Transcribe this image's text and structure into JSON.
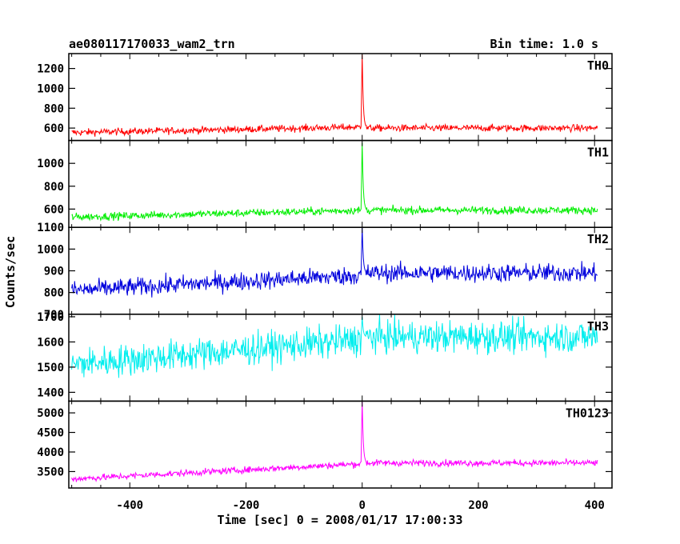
{
  "header": {
    "left_title": "ae080117170033_wam2_trn",
    "right_title": "Bin time: 1.0 s"
  },
  "chart_data": {
    "type": "line",
    "xlabel": "Time [sec] 0 = 2008/01/17 17:00:33",
    "ylabel": "Counts/sec",
    "xlim": [
      -505,
      430
    ],
    "xticks": [
      -400,
      -200,
      0,
      200,
      400
    ],
    "x_start": -500,
    "x_end": 405,
    "bin": 1.0,
    "grid": false,
    "panels": [
      {
        "name": "TH0",
        "color": "#ff0000",
        "ylim": [
          475,
          1350
        ],
        "yticks": [
          600,
          800,
          1000,
          1200
        ],
        "baseline_start": 555,
        "baseline_pre": 610,
        "baseline_post": 600,
        "noise": 25,
        "peak": 1340
      },
      {
        "name": "TH1",
        "color": "#00ee00",
        "ylim": [
          440,
          1200
        ],
        "yticks": [
          600,
          800,
          1000
        ],
        "baseline_start": 530,
        "baseline_pre": 590,
        "baseline_post": 590,
        "noise": 24,
        "peak": 1180
      },
      {
        "name": "TH2",
        "color": "#0000dd",
        "ylim": [
          700,
          1100
        ],
        "yticks": [
          700,
          800,
          900,
          1000,
          1100
        ],
        "baseline_start": 810,
        "baseline_pre": 880,
        "baseline_post": 890,
        "noise": 30,
        "peak": 1100
      },
      {
        "name": "TH3",
        "color": "#00eeee",
        "ylim": [
          1365,
          1710
        ],
        "yticks": [
          1400,
          1500,
          1600,
          1700
        ],
        "baseline_start": 1510,
        "baseline_pre": 1610,
        "baseline_post": 1620,
        "noise": 45,
        "peak": 1700
      },
      {
        "name": "TH0123",
        "color": "#ff00ff",
        "ylim": [
          3080,
          5300
        ],
        "yticks": [
          3500,
          4000,
          4500,
          5000
        ],
        "baseline_start": 3310,
        "baseline_pre": 3700,
        "baseline_post": 3720,
        "noise": 60,
        "peak": 5320
      }
    ]
  }
}
